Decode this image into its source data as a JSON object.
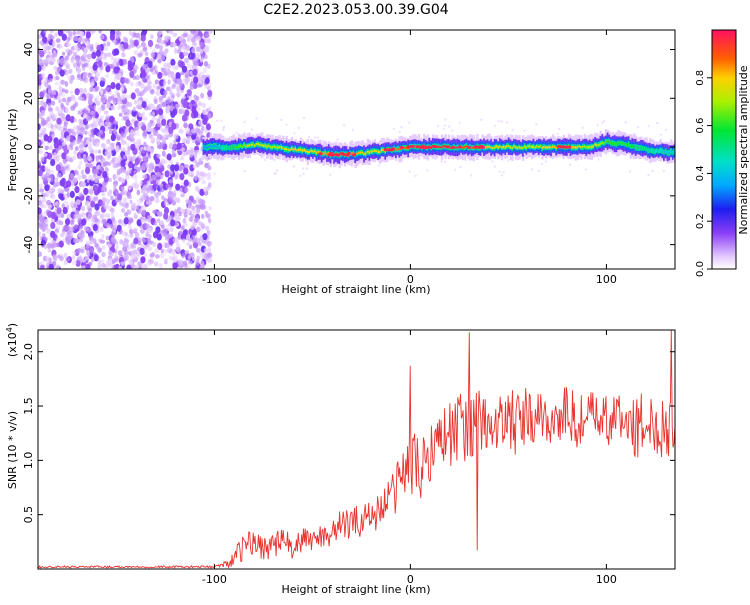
{
  "figure": {
    "title": "C2E2.2023.053.00.39.G04"
  },
  "chart_data": [
    {
      "type": "heatmap",
      "xlabel": "Height of straight line (km)",
      "ylabel": "Frequency (Hz)",
      "xlim": [
        -190,
        135
      ],
      "ylim": [
        -50,
        48
      ],
      "x_ticks": [
        -100,
        0,
        100
      ],
      "y_ticks": [
        -40,
        -20,
        0,
        20,
        40
      ],
      "colorbar": {
        "label": "Normalized spectral amplitude",
        "range": [
          0,
          1
        ],
        "ticks": [
          0.0,
          0.2,
          0.4,
          0.6,
          0.8
        ]
      },
      "noise_region_x": [
        -190,
        -102
      ],
      "ridge": {
        "x": [
          -100,
          -90,
          -80,
          -70,
          -60,
          -50,
          -40,
          -30,
          -20,
          -10,
          0,
          10,
          20,
          30,
          40,
          50,
          60,
          70,
          80,
          90,
          95,
          100,
          110,
          120,
          130
        ],
        "freq": [
          0,
          0,
          1,
          0,
          -1,
          -2,
          -3,
          -3,
          -2,
          -1,
          0,
          0,
          0,
          0,
          0,
          0,
          0,
          0,
          0,
          0,
          1,
          2,
          1,
          -1,
          -2
        ],
        "amplitude": [
          0.35,
          0.6,
          0.75,
          0.7,
          0.8,
          0.8,
          0.85,
          0.85,
          0.75,
          0.85,
          0.9,
          0.95,
          0.95,
          0.9,
          0.8,
          0.75,
          0.7,
          0.8,
          0.85,
          0.7,
          0.75,
          0.6,
          0.6,
          0.5,
          0.4
        ]
      }
    },
    {
      "type": "line",
      "xlabel": "Height of straight line (km)",
      "ylabel": "SNR (10 * v/v)",
      "y_multiplier": "(x10",
      "y_multiplier_exp": "4",
      "y_multiplier_close": ")",
      "xlim": [
        -190,
        135
      ],
      "ylim": [
        0,
        2.2
      ],
      "x_ticks": [
        -100,
        0,
        100
      ],
      "y_ticks": [
        0.5,
        1.0,
        1.5,
        2.0
      ],
      "color": "#e8332e",
      "series": [
        {
          "x": [
            -190,
            -160,
            -130,
            -100,
            -95,
            -90,
            -85,
            -80,
            -75,
            -70,
            -65,
            -60,
            -55,
            -50,
            -45,
            -40,
            -35,
            -30,
            -25,
            -20,
            -15,
            -10,
            -5,
            0,
            5,
            10,
            15,
            20,
            25,
            30,
            35,
            40,
            45,
            50,
            55,
            60,
            65,
            70,
            75,
            80,
            85,
            90,
            95,
            100,
            105,
            110,
            115,
            120,
            125,
            130,
            135
          ],
          "values": [
            0.02,
            0.02,
            0.02,
            0.02,
            0.04,
            0.1,
            0.2,
            0.25,
            0.2,
            0.22,
            0.25,
            0.2,
            0.25,
            0.28,
            0.3,
            0.35,
            0.4,
            0.42,
            0.45,
            0.5,
            0.55,
            0.65,
            0.85,
            1.0,
            0.9,
            1.1,
            1.2,
            1.25,
            1.3,
            1.35,
            1.3,
            1.35,
            1.3,
            1.4,
            1.3,
            1.4,
            1.35,
            1.4,
            1.35,
            1.45,
            1.35,
            1.4,
            1.4,
            1.35,
            1.4,
            1.35,
            1.3,
            1.35,
            1.3,
            1.35,
            1.3
          ],
          "noise_amplitude": [
            0.01,
            0.01,
            0.01,
            0.01,
            0.03,
            0.08,
            0.12,
            0.15,
            0.12,
            0.12,
            0.14,
            0.12,
            0.12,
            0.12,
            0.12,
            0.14,
            0.15,
            0.15,
            0.15,
            0.18,
            0.18,
            0.22,
            0.25,
            0.3,
            0.3,
            0.3,
            0.32,
            0.32,
            0.32,
            0.35,
            0.35,
            0.32,
            0.3,
            0.3,
            0.3,
            0.3,
            0.28,
            0.28,
            0.25,
            0.28,
            0.25,
            0.25,
            0.25,
            0.25,
            0.25,
            0.28,
            0.28,
            0.3,
            0.3,
            0.32,
            0.3
          ]
        }
      ],
      "peaks": [
        [
          0,
          1.87
        ],
        [
          30,
          2.18
        ],
        [
          34,
          0.17
        ],
        [
          133,
          2.2
        ]
      ]
    }
  ]
}
